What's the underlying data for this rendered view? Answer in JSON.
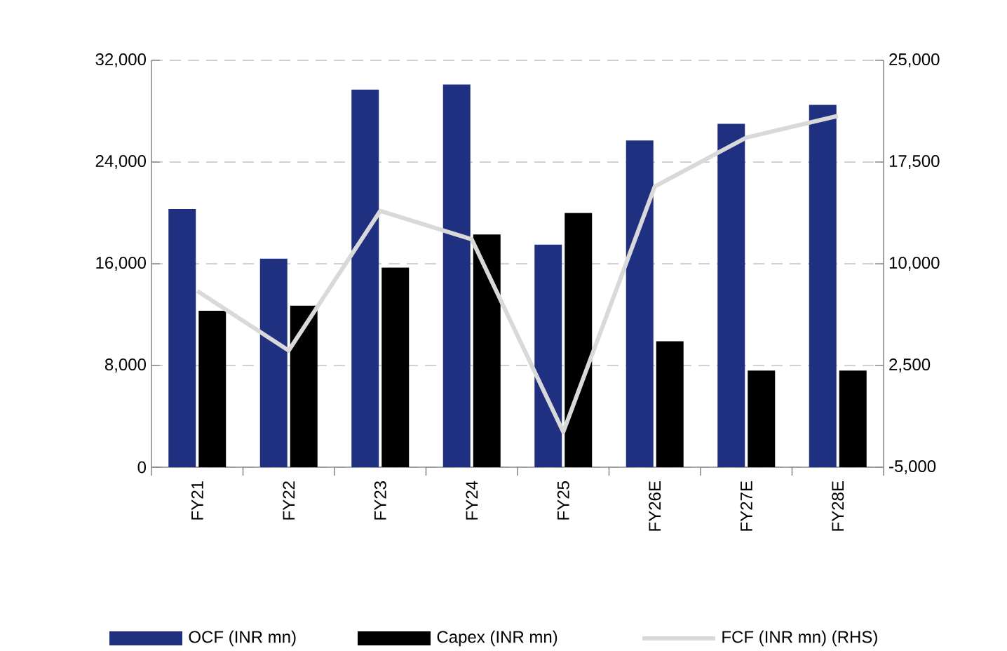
{
  "chart_data": {
    "type": "bar",
    "categories": [
      "FY21",
      "FY22",
      "FY23",
      "FY24",
      "FY25",
      "FY26E",
      "FY27E",
      "FY28E"
    ],
    "series": [
      {
        "name": "OCF (INR mn)",
        "color": "#203080",
        "values": [
          20300,
          16400,
          29700,
          30100,
          17500,
          25700,
          27000,
          28500
        ]
      },
      {
        "name": "Capex (INR mn)",
        "color": "#000000",
        "values": [
          12300,
          12700,
          15700,
          18300,
          20000,
          9900,
          7600,
          7600
        ]
      },
      {
        "name": "FCF (INR mn) (RHS)",
        "type": "line",
        "axis": "y2",
        "color": "#d9d9d9",
        "values": [
          8000,
          3600,
          13900,
          11800,
          -2400,
          15700,
          19300,
          20900
        ]
      }
    ],
    "ylim": [
      0,
      32000
    ],
    "yticks": [
      0,
      {
        "value": 8000,
        "label": "8,000"
      },
      {
        "value": 16000,
        "label": "16,000"
      },
      {
        "value": 24000,
        "label": "24,000"
      },
      {
        "value": 32000,
        "label": "32,000"
      }
    ],
    "y2lim": [
      -5000,
      25000
    ],
    "y2ticks": [
      {
        "value": -5000,
        "label": "-5,000"
      },
      {
        "value": 2500,
        "label": "2,500"
      },
      {
        "value": 10000,
        "label": "10,000"
      },
      {
        "value": 17500,
        "label": "17,500"
      },
      {
        "value": 25000,
        "label": "25,000"
      }
    ],
    "grid": "y",
    "legend": "bottom",
    "marker": "none",
    "line_style": "solid"
  }
}
